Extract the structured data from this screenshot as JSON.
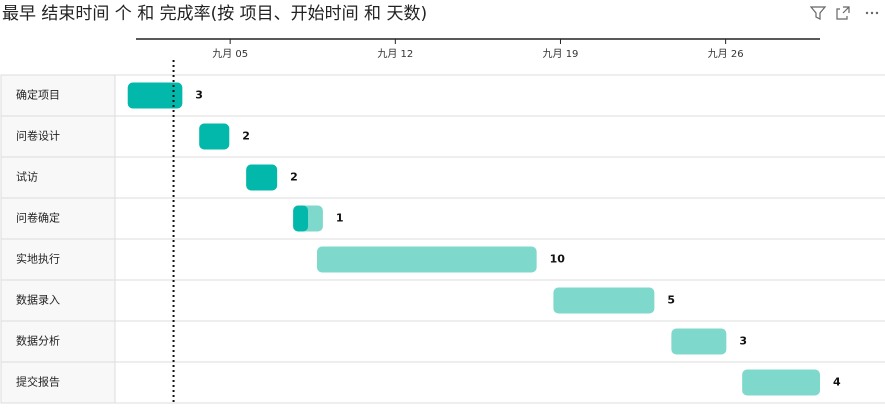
{
  "chart_data": {
    "type": "gantt",
    "title": "最早 结束时间 个 和 完成率(按 项目、开始时间 和 天数)",
    "categories": [
      "确定项目",
      "问卷设计",
      "试访",
      "问卷确定",
      "实地执行",
      "数据录入",
      "数据分析",
      "提交报告"
    ],
    "start": [
      0.66,
      3.69,
      5.68,
      7.67,
      8.68,
      18.7,
      23.7,
      26.7
    ],
    "end": [
      2.97,
      4.96,
      6.99,
      8.93,
      17.99,
      22.98,
      26.03,
      30.0
    ],
    "values": [
      3,
      2,
      2,
      1,
      10,
      5,
      3,
      4
    ],
    "progress": [
      1,
      1,
      1,
      0.5,
      0,
      0,
      0,
      0
    ],
    "done_color": "#01b8aa",
    "todo_color": "#7fd8cc",
    "today_line": 2.6,
    "xlim": [
      0.5,
      30
    ],
    "xticks": [
      {
        "value": 5,
        "label": "九月 05"
      },
      {
        "value": 12,
        "label": "九月 12"
      },
      {
        "value": 19,
        "label": "九月 19"
      },
      {
        "value": 26,
        "label": "九月 26"
      }
    ]
  }
}
